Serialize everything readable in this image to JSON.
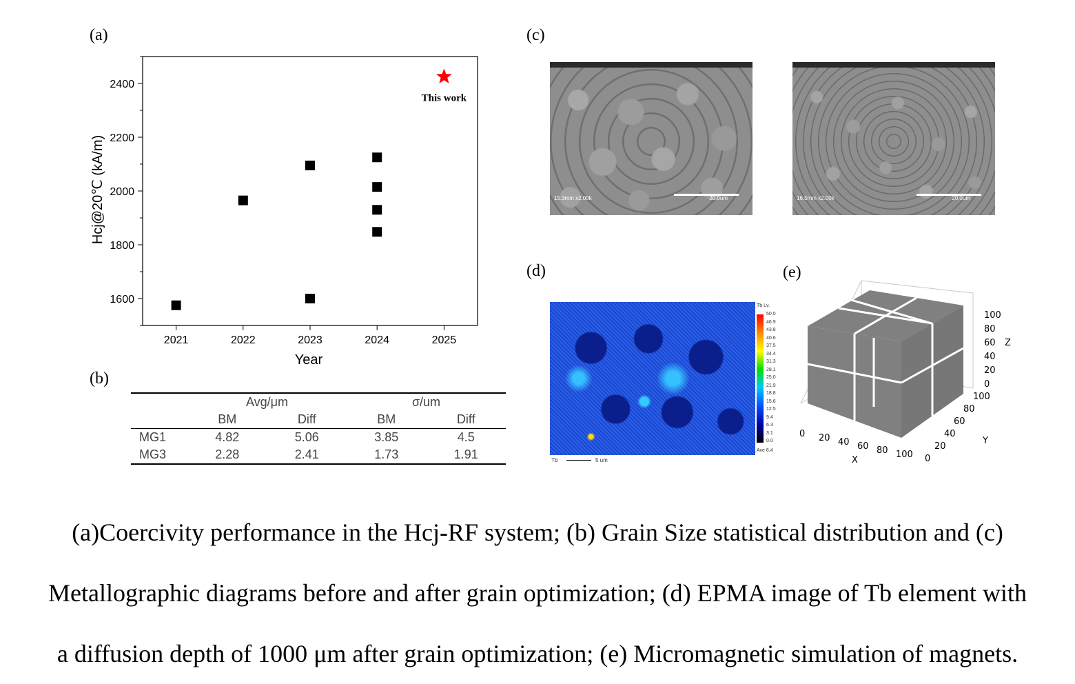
{
  "panels": {
    "a": "(a)",
    "b": "(b)",
    "c": "(c)",
    "d": "(d)",
    "e": "(e)"
  },
  "chart_data": {
    "type": "scatter",
    "title": "",
    "xlabel": "Year",
    "ylabel": "Hcj@20℃ (kA/m)",
    "xlim": [
      2020.5,
      2025.5
    ],
    "ylim": [
      1500,
      2500
    ],
    "x_ticks": [
      2021,
      2022,
      2023,
      2024,
      2025
    ],
    "y_ticks": [
      1600,
      1800,
      2000,
      2200,
      2400
    ],
    "series": [
      {
        "marker": "square",
        "color": "#000000",
        "points": [
          {
            "x": 2021,
            "y": 1575
          },
          {
            "x": 2022,
            "y": 1965
          },
          {
            "x": 2023,
            "y": 2095
          },
          {
            "x": 2023,
            "y": 1600
          },
          {
            "x": 2024,
            "y": 2125
          },
          {
            "x": 2024,
            "y": 2015
          },
          {
            "x": 2024,
            "y": 1930
          },
          {
            "x": 2024,
            "y": 1848
          }
        ]
      },
      {
        "marker": "star",
        "color": "#ff0000",
        "points": [
          {
            "x": 2025,
            "y": 2425
          }
        ]
      }
    ],
    "annotations": [
      {
        "text": "This work",
        "x": 2025,
        "y": 2350
      }
    ]
  },
  "table": {
    "group_headers": [
      "Avg/μm",
      "σ/um"
    ],
    "sub_headers": [
      "BM",
      "Diff",
      "BM",
      "Diff"
    ],
    "rows": [
      {
        "label": "MG1",
        "values": [
          "4.82",
          "5.06",
          "3.85",
          "4.5"
        ]
      },
      {
        "label": "MG3",
        "values": [
          "2.28",
          "2.41",
          "1.73",
          "1.91"
        ]
      }
    ]
  },
  "sem_images": [
    {
      "info": "15.3mm x2.00k",
      "scale": "20.0um"
    },
    {
      "info": "16.5mm x2.00k",
      "scale": "20.0um"
    }
  ],
  "epma": {
    "colorbar_title": "Tb Lv.",
    "levels": [
      "50.0",
      "46.9",
      "43.8",
      "40.6",
      "37.5",
      "34.4",
      "31.3",
      "28.1",
      "25.0",
      "21.9",
      "18.8",
      "15.6",
      "12.5",
      "9.4",
      "6.3",
      "3.1",
      "0.0"
    ],
    "average": "Ave 6.4",
    "element": "Tb",
    "scale_label": "5 um"
  },
  "cube": {
    "x_label": "X",
    "y_label": "Y",
    "z_label": "Z",
    "x_ticks": [
      "0",
      "20",
      "40",
      "60",
      "80",
      "100"
    ],
    "y_ticks": [
      "0",
      "20",
      "40",
      "60",
      "80",
      "100"
    ],
    "z_ticks": [
      "0",
      "20",
      "40",
      "60",
      "80",
      "100"
    ],
    "face_color": "#808080",
    "grain_boundary_color": "#ffffff"
  },
  "caption": {
    "line1": "(a)Coercivity performance in the Hcj-RF system; (b) Grain Size statistical distribution and (c)",
    "line2": "Metallographic diagrams before and after grain optimization; (d) EPMA image of Tb element with",
    "line3": "a diffusion depth of 1000 μm after grain optimization; (e) Micromagnetic simulation of magnets."
  }
}
